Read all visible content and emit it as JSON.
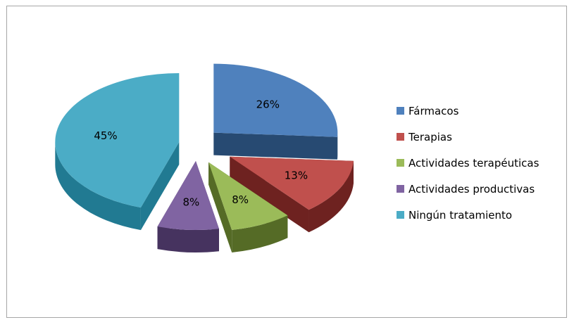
{
  "chart_data": {
    "type": "pie",
    "style": "3d-exploded",
    "title": "",
    "legend_position": "right",
    "slices": [
      {
        "label": "Fármacos",
        "value": 26,
        "value_label": "26%",
        "color": "#4f81bd",
        "dark": "#274a72"
      },
      {
        "label": "Terapias",
        "value": 13,
        "value_label": "13%",
        "color": "#c0504d",
        "dark": "#6e2220"
      },
      {
        "label": "Actividades terapéuticas",
        "value": 8,
        "value_label": "8%",
        "color": "#9bbb59",
        "dark": "#556b26"
      },
      {
        "label": "Actividades productivas",
        "value": 8,
        "value_label": "8%",
        "color": "#8064a2",
        "dark": "#46335f"
      },
      {
        "label": "Ningún tratamiento",
        "value": 45,
        "value_label": "45%",
        "color": "#4bacc6",
        "dark": "#217a92"
      }
    ]
  }
}
